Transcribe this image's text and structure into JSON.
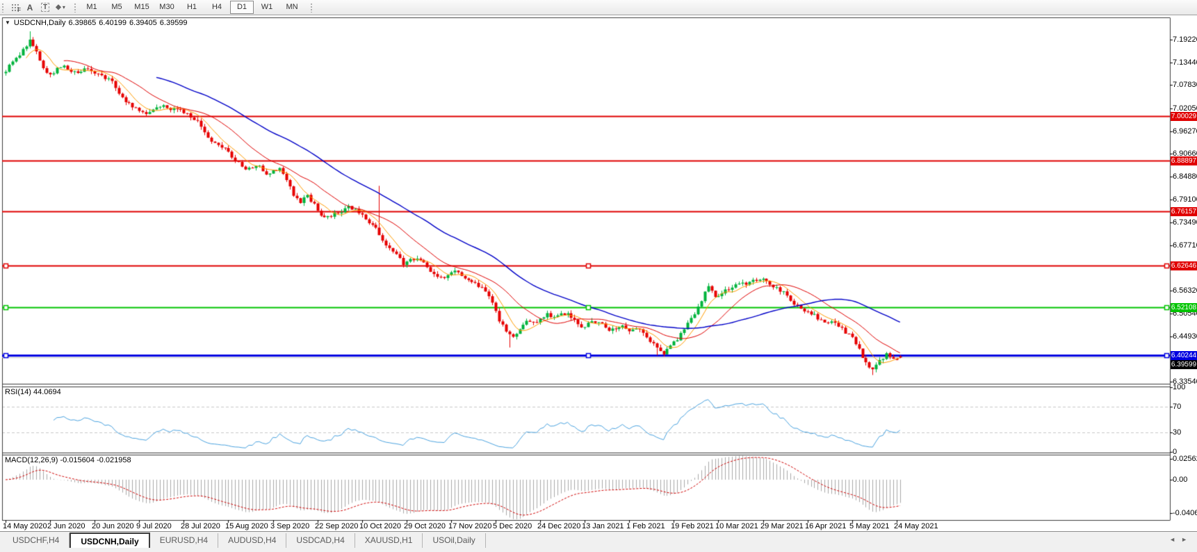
{
  "toolbar": {
    "tool_icons": [
      {
        "name": "fibonacci-icon",
        "glyph": "dotgrid-F"
      },
      {
        "name": "text-label-icon",
        "glyph": "A"
      },
      {
        "name": "text-icon",
        "glyph": "T"
      },
      {
        "name": "arrow-objects-icon",
        "glyph": "diamond-caret"
      }
    ],
    "timeframes": [
      {
        "label": "M1"
      },
      {
        "label": "M5"
      },
      {
        "label": "M15"
      },
      {
        "label": "M30"
      },
      {
        "label": "H1"
      },
      {
        "label": "H4"
      },
      {
        "label": "D1",
        "active": true
      },
      {
        "label": "W1"
      },
      {
        "label": "MN"
      }
    ]
  },
  "header": {
    "symbol": "USDCNH,Daily",
    "open": "6.39865",
    "high": "6.40199",
    "low": "6.39405",
    "close": "6.39599"
  },
  "price_axis": {
    "ticks": [
      "7.19220",
      "7.13440",
      "7.07830",
      "7.02050",
      "6.96270",
      "6.90660",
      "6.84880",
      "6.79100",
      "6.73490",
      "6.67710",
      "6.62100",
      "6.56320",
      "6.50540",
      "6.44930",
      "6.33540"
    ]
  },
  "rsi_pane": {
    "label": "RSI(14) 44.0694",
    "scale": [
      "100",
      "70",
      "30",
      "0"
    ],
    "current": 44.0694
  },
  "macd_pane": {
    "label": "MACD(12,26,9) -0.015604 -0.021958",
    "scale": [
      "0.025623",
      "0.00",
      "-0.04068"
    ],
    "current_macd": -0.015604,
    "current_signal": -0.021958
  },
  "tabs": {
    "items": [
      {
        "label": "USDCHF,H4",
        "active": false
      },
      {
        "label": "USDCNH,Daily",
        "active": true
      },
      {
        "label": "EURUSD,H4",
        "active": false
      },
      {
        "label": "AUDUSD,H4",
        "active": false
      },
      {
        "label": "USDCAD,H4",
        "active": false
      },
      {
        "label": "XAUUSD,H1",
        "active": false
      },
      {
        "label": "USOil,Daily",
        "active": false
      }
    ],
    "scroll_left": "◄",
    "scroll_right": "►"
  },
  "chart_data": {
    "type": "candlestick",
    "symbol": "USDCNH",
    "timeframe": "Daily",
    "quote": {
      "open": 6.39865,
      "high": 6.40199,
      "low": 6.39405,
      "close": 6.39599
    },
    "y_axis": {
      "min": 6.3354,
      "max": 7.1922
    },
    "x_dates": [
      "14 May 2020",
      "2 Jun 2020",
      "20 Jun 2020",
      "9 Jul 2020",
      "28 Jul 2020",
      "15 Aug 2020",
      "3 Sep 2020",
      "22 Sep 2020",
      "10 Oct 2020",
      "29 Oct 2020",
      "17 Nov 2020",
      "5 Dec 2020",
      "24 Dec 2020",
      "13 Jan 2021",
      "1 Feb 2021",
      "19 Feb 2021",
      "10 Mar 2021",
      "29 Mar 2021",
      "16 Apr 2021",
      "5 May 2021",
      "24 May 2021"
    ],
    "candles_per_date_tick": 13,
    "num_candles": 262,
    "close_anchors": [
      [
        0,
        7.115
      ],
      [
        2,
        7.135
      ],
      [
        4,
        7.155
      ],
      [
        7,
        7.19
      ],
      [
        9,
        7.16
      ],
      [
        11,
        7.12
      ],
      [
        13,
        7.103
      ],
      [
        15,
        7.118
      ],
      [
        17,
        7.128
      ],
      [
        19,
        7.112
      ],
      [
        21,
        7.108
      ],
      [
        23,
        7.118
      ],
      [
        25,
        7.115
      ],
      [
        27,
        7.105
      ],
      [
        29,
        7.097
      ],
      [
        31,
        7.087
      ],
      [
        33,
        7.06
      ],
      [
        35,
        7.038
      ],
      [
        38,
        7.02
      ],
      [
        40,
        7.008
      ],
      [
        42,
        7.012
      ],
      [
        44,
        7.025
      ],
      [
        46,
        7.03
      ],
      [
        48,
        7.02
      ],
      [
        50,
        7.022
      ],
      [
        52,
        7.01
      ],
      [
        54,
        7.0
      ],
      [
        56,
        6.985
      ],
      [
        58,
        6.96
      ],
      [
        60,
        6.938
      ],
      [
        62,
        6.925
      ],
      [
        64,
        6.92
      ],
      [
        66,
        6.9
      ],
      [
        68,
        6.882
      ],
      [
        70,
        6.868
      ],
      [
        72,
        6.872
      ],
      [
        74,
        6.875
      ],
      [
        76,
        6.858
      ],
      [
        78,
        6.862
      ],
      [
        80,
        6.868
      ],
      [
        82,
        6.84
      ],
      [
        84,
        6.805
      ],
      [
        86,
        6.786
      ],
      [
        88,
        6.8
      ],
      [
        90,
        6.78
      ],
      [
        92,
        6.752
      ],
      [
        94,
        6.746
      ],
      [
        96,
        6.755
      ],
      [
        98,
        6.762
      ],
      [
        100,
        6.775
      ],
      [
        102,
        6.765
      ],
      [
        104,
        6.752
      ],
      [
        106,
        6.73
      ],
      [
        108,
        6.718
      ],
      [
        110,
        6.69
      ],
      [
        112,
        6.672
      ],
      [
        114,
        6.655
      ],
      [
        116,
        6.63
      ],
      [
        118,
        6.64
      ],
      [
        120,
        6.645
      ],
      [
        122,
        6.637
      ],
      [
        124,
        6.61
      ],
      [
        126,
        6.6
      ],
      [
        128,
        6.594
      ],
      [
        130,
        6.608
      ],
      [
        132,
        6.612
      ],
      [
        134,
        6.596
      ],
      [
        136,
        6.588
      ],
      [
        138,
        6.575
      ],
      [
        140,
        6.56
      ],
      [
        142,
        6.53
      ],
      [
        144,
        6.49
      ],
      [
        146,
        6.458
      ],
      [
        148,
        6.445
      ],
      [
        150,
        6.47
      ],
      [
        152,
        6.488
      ],
      [
        154,
        6.482
      ],
      [
        156,
        6.492
      ],
      [
        158,
        6.505
      ],
      [
        160,
        6.498
      ],
      [
        162,
        6.505
      ],
      [
        164,
        6.508
      ],
      [
        166,
        6.49
      ],
      [
        168,
        6.47
      ],
      [
        170,
        6.48
      ],
      [
        172,
        6.486
      ],
      [
        174,
        6.478
      ],
      [
        176,
        6.462
      ],
      [
        178,
        6.47
      ],
      [
        180,
        6.478
      ],
      [
        182,
        6.462
      ],
      [
        184,
        6.47
      ],
      [
        186,
        6.455
      ],
      [
        188,
        6.438
      ],
      [
        190,
        6.418
      ],
      [
        192,
        6.408
      ],
      [
        194,
        6.425
      ],
      [
        196,
        6.442
      ],
      [
        198,
        6.468
      ],
      [
        200,
        6.495
      ],
      [
        202,
        6.52
      ],
      [
        204,
        6.562
      ],
      [
        205,
        6.575
      ],
      [
        207,
        6.548
      ],
      [
        209,
        6.556
      ],
      [
        211,
        6.568
      ],
      [
        213,
        6.575
      ],
      [
        215,
        6.58
      ],
      [
        217,
        6.585
      ],
      [
        219,
        6.59
      ],
      [
        221,
        6.595
      ],
      [
        223,
        6.58
      ],
      [
        225,
        6.568
      ],
      [
        227,
        6.558
      ],
      [
        229,
        6.54
      ],
      [
        231,
        6.525
      ],
      [
        233,
        6.515
      ],
      [
        235,
        6.508
      ],
      [
        237,
        6.495
      ],
      [
        239,
        6.486
      ],
      [
        241,
        6.483
      ],
      [
        243,
        6.476
      ],
      [
        245,
        6.46
      ],
      [
        247,
        6.445
      ],
      [
        249,
        6.415
      ],
      [
        251,
        6.38
      ],
      [
        253,
        6.362
      ],
      [
        255,
        6.386
      ],
      [
        257,
        6.403
      ],
      [
        259,
        6.391
      ],
      [
        261,
        6.396
      ]
    ],
    "wick_events": [
      {
        "i": 7,
        "high": 7.213
      },
      {
        "i": 109,
        "high": 6.826
      },
      {
        "i": 147,
        "low": 6.421
      },
      {
        "i": 190,
        "low": 6.401
      },
      {
        "i": 253,
        "low": 6.352
      }
    ],
    "horizontal_lines": [
      {
        "price": 7.00029,
        "label": "7.00029",
        "color": "#e00000",
        "width": 2,
        "selected": false
      },
      {
        "price": 6.88897,
        "label": "6.88897",
        "color": "#e00000",
        "width": 2,
        "selected": false
      },
      {
        "price": 6.76157,
        "label": "6.76157",
        "color": "#e00000",
        "width": 2,
        "selected": false
      },
      {
        "price": 6.62646,
        "label": "6.62646",
        "color": "#e00000",
        "width": 2,
        "selected": true
      },
      {
        "price": 6.52108,
        "label": "6.52108",
        "color": "#00c400",
        "width": 2,
        "selected": true
      },
      {
        "price": 6.40244,
        "label": "6.40244",
        "color": "#0000e0",
        "width": 3,
        "selected": true
      }
    ],
    "bid_price": {
      "value": 6.39599,
      "label": "6.39599",
      "line_color": "#c0c0c0",
      "box_color": "#000000"
    },
    "moving_averages": [
      {
        "period": 7,
        "color": "#ff9c00",
        "width": 1
      },
      {
        "period": 18,
        "color": "#e00000",
        "width": 1
      },
      {
        "period": 45,
        "color": "#0000c8",
        "width": 1.4
      }
    ],
    "candle_colors": {
      "up": "#00b43c",
      "down": "#e60000"
    },
    "rsi": {
      "period": 14,
      "line_color": "#4aa3e0",
      "levels": [
        70,
        30
      ],
      "range": [
        0,
        100
      ]
    },
    "macd": {
      "fast": 12,
      "slow": 26,
      "signal": 9,
      "histogram_color": "#a8a8a8",
      "signal_color": "#d00000",
      "scale_max": 0.025623,
      "scale_min": -0.04068
    }
  }
}
